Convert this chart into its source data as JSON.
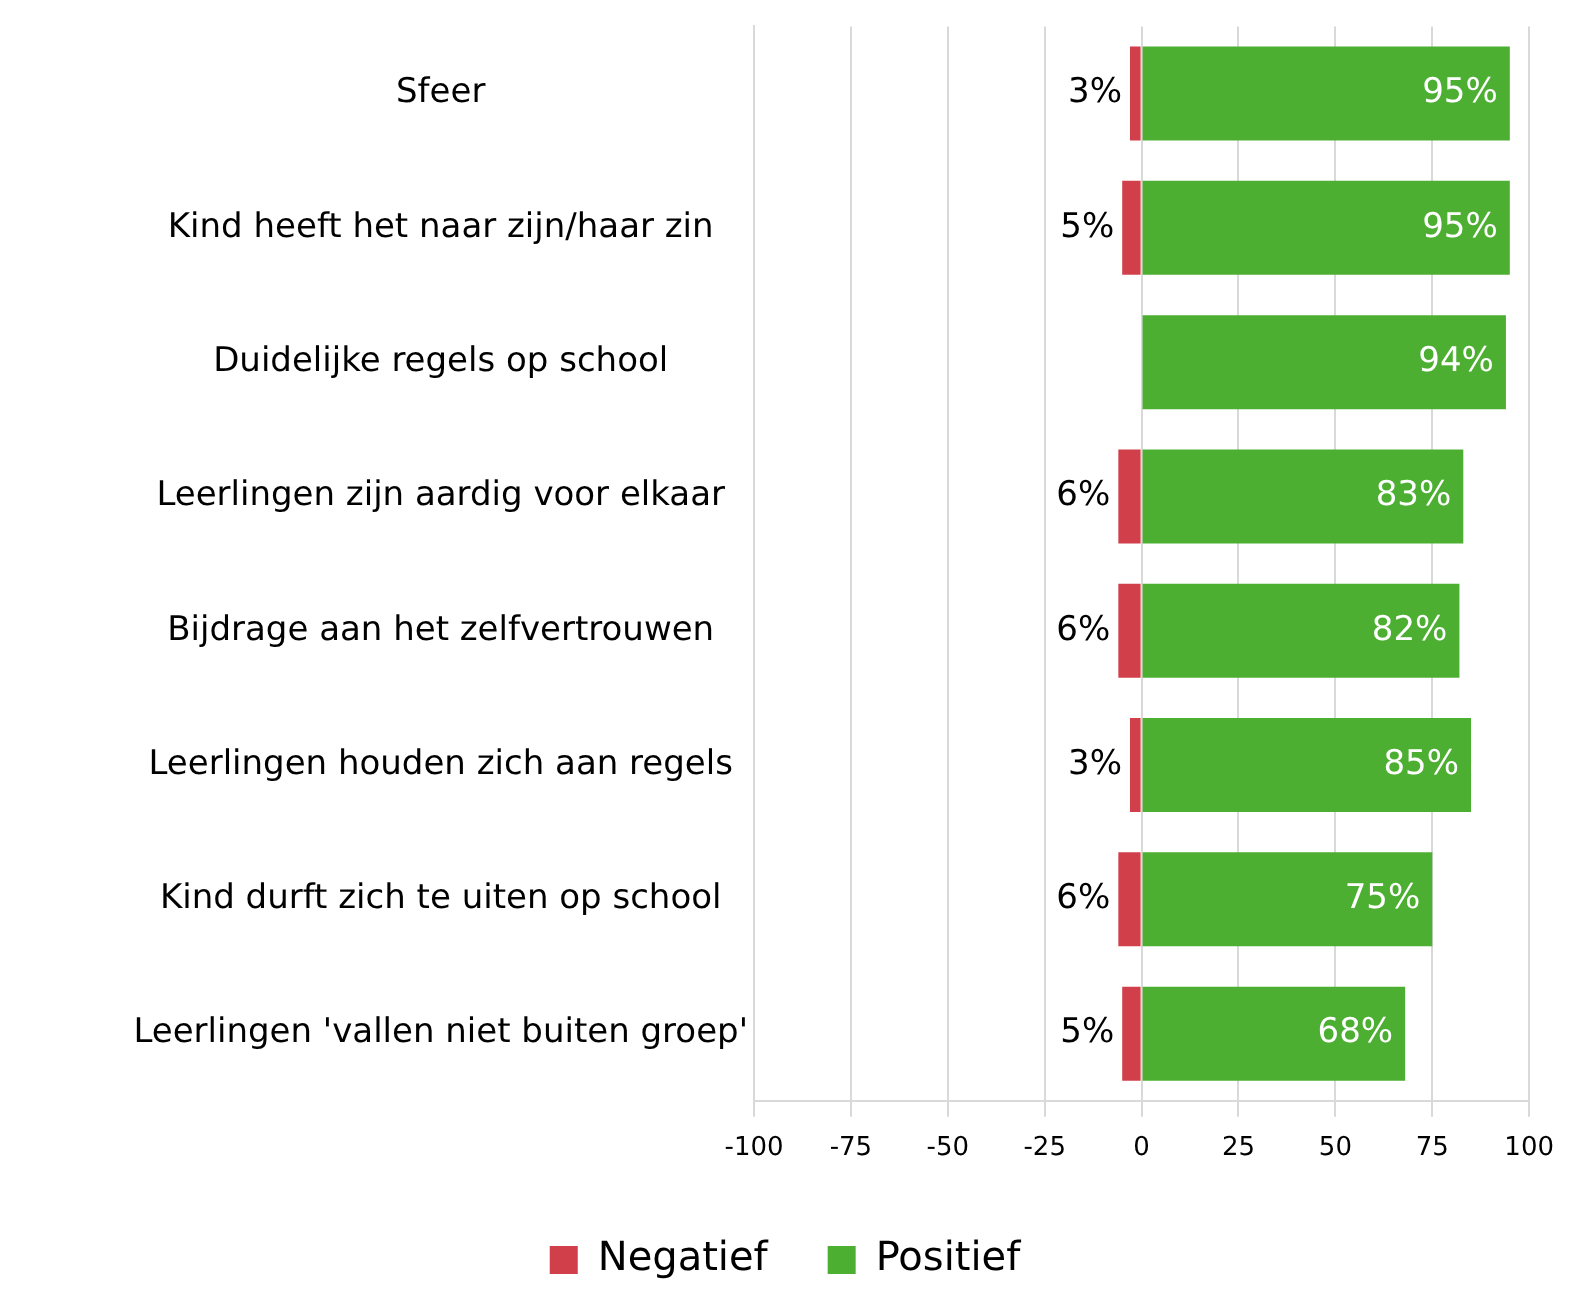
{
  "chart_data": {
    "type": "bar",
    "orientation": "horizontal",
    "categories": [
      "Sfeer",
      "Kind heeft het naar zijn/haar zin",
      "Duidelijke regels op school",
      "Leerlingen zijn aardig voor elkaar",
      "Bijdrage aan het zelfvertrouwen",
      "Leerlingen houden zich aan regels",
      "Kind durft zich te uiten op school",
      "Leerlingen 'vallen niet buiten groep'"
    ],
    "series": [
      {
        "name": "Negatief",
        "color": "#d13f4a",
        "values": [
          3,
          5,
          null,
          6,
          6,
          3,
          6,
          5
        ],
        "base": [
          -3,
          -5,
          null,
          -6,
          -6,
          -3,
          -6,
          -5
        ],
        "value_labels": [
          "3%",
          "5%",
          null,
          "6%",
          "6%",
          "3%",
          "6%",
          "5%"
        ]
      },
      {
        "name": "Positief",
        "color": "#4caf32",
        "values": [
          95,
          95,
          94,
          83,
          82,
          85,
          75,
          68
        ],
        "value_labels": [
          "95%",
          "95%",
          "94%",
          "83%",
          "82%",
          "85%",
          "75%",
          "68%"
        ]
      }
    ],
    "xlim": [
      -100,
      100
    ],
    "xticks": [
      -100,
      -75,
      -50,
      -25,
      0,
      25,
      50,
      75,
      100
    ],
    "grid": "x",
    "legend": "bottom"
  }
}
